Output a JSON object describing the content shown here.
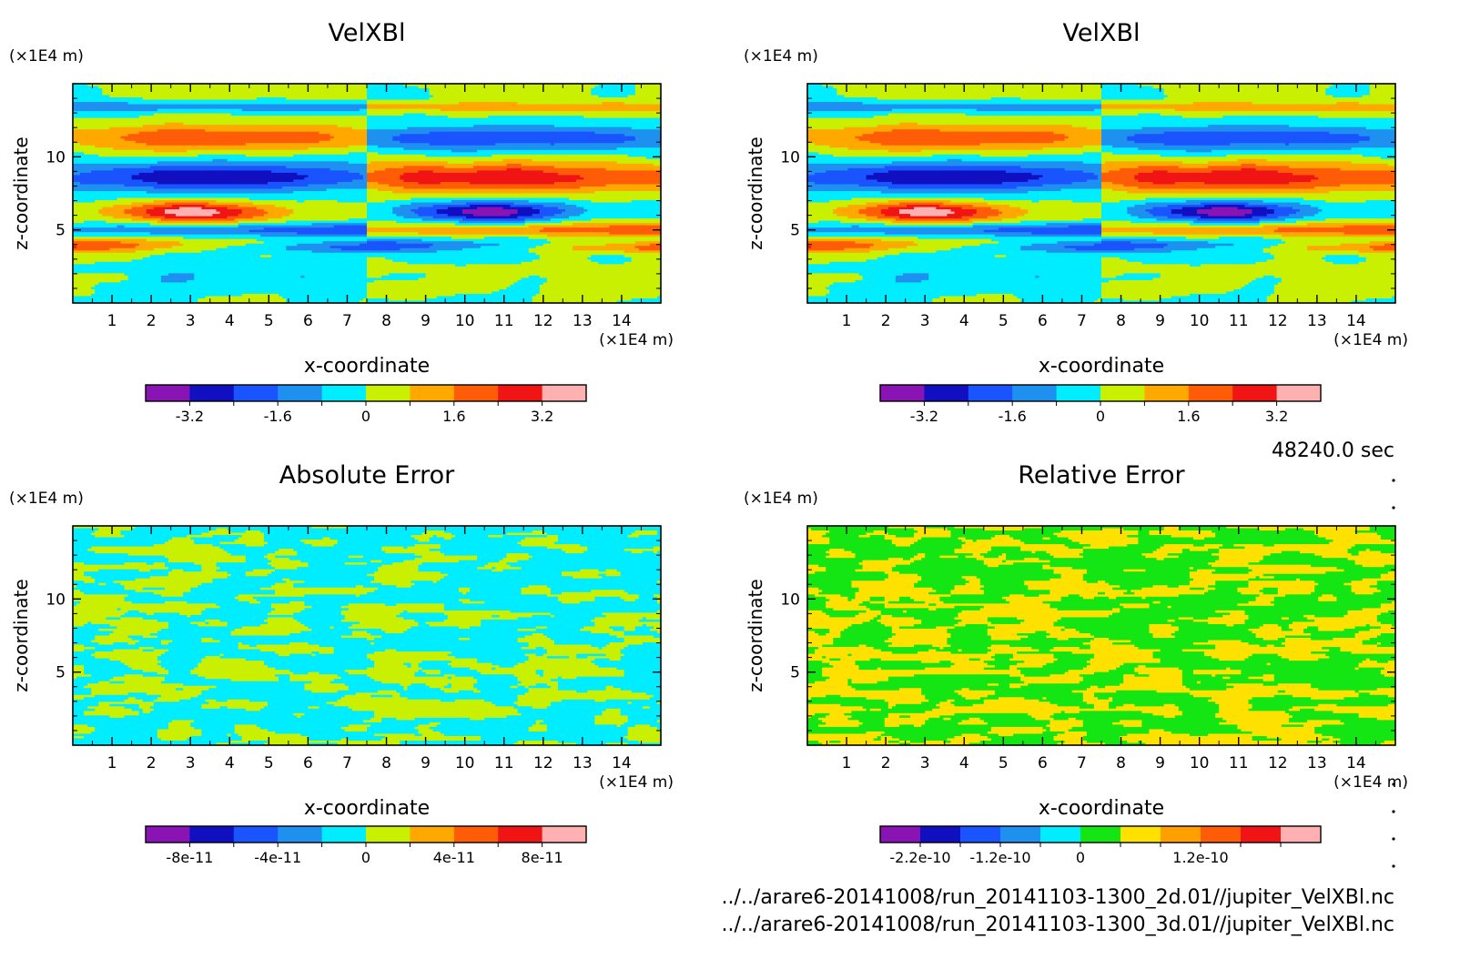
{
  "colors": {
    "velocity_palette": [
      "#8a13b4",
      "#1010c0",
      "#1a54ff",
      "#1e90f0",
      "#00ecff",
      "#c8f000",
      "#ffa800",
      "#ff5c08",
      "#f01414",
      "#ffb0b0"
    ],
    "abs_error_palette": [
      "#8a13b4",
      "#1010c0",
      "#1a54ff",
      "#1e90f0",
      "#00ecff",
      "#c8f000",
      "#ffa800",
      "#ff5c08",
      "#f01414",
      "#ffb0b0"
    ],
    "rel_error_palette": [
      "#8a13b4",
      "#1010c0",
      "#1a54ff",
      "#1e90f0",
      "#00ecff",
      "#14e614",
      "#ffe100",
      "#ffa000",
      "#ff5c08",
      "#f01414",
      "#ffb0b0"
    ]
  },
  "time_label": "48240.0 sec",
  "file_paths": [
    "../../arare6-20141008/run_20141103-1300_2d.01//jupiter_VelXBl.nc",
    "../../arare6-20141008/run_20141103-1300_3d.01//jupiter_VelXBl.nc"
  ],
  "chart_data": [
    {
      "type": "heatmap",
      "title": "VelXBl",
      "xlabel": "x-coordinate",
      "ylabel": "z-coordinate",
      "x_unit": "(×1E4 m)",
      "y_unit": "(×1E4 m)",
      "xlim": [
        0,
        15
      ],
      "ylim": [
        0,
        15
      ],
      "x_ticks": [
        1,
        2,
        3,
        4,
        5,
        6,
        7,
        8,
        9,
        10,
        11,
        12,
        13,
        14
      ],
      "y_ticks": [
        5,
        10
      ],
      "colorbar": {
        "tick_labels": [
          "-3.2",
          "-1.6",
          "0",
          "1.6",
          "3.2"
        ]
      }
    },
    {
      "type": "heatmap",
      "title": "VelXBl",
      "xlabel": "x-coordinate",
      "ylabel": "z-coordinate",
      "x_unit": "(×1E4 m)",
      "y_unit": "(×1E4 m)",
      "xlim": [
        0,
        15
      ],
      "ylim": [
        0,
        15
      ],
      "x_ticks": [
        1,
        2,
        3,
        4,
        5,
        6,
        7,
        8,
        9,
        10,
        11,
        12,
        13,
        14
      ],
      "y_ticks": [
        5,
        10
      ],
      "colorbar": {
        "tick_labels": [
          "-3.2",
          "-1.6",
          "0",
          "1.6",
          "3.2"
        ]
      }
    },
    {
      "type": "heatmap",
      "title": "Absolute Error",
      "xlabel": "x-coordinate",
      "ylabel": "z-coordinate",
      "x_unit": "(×1E4 m)",
      "y_unit": "(×1E4 m)",
      "xlim": [
        0,
        15
      ],
      "ylim": [
        0,
        15
      ],
      "x_ticks": [
        1,
        2,
        3,
        4,
        5,
        6,
        7,
        8,
        9,
        10,
        11,
        12,
        13,
        14
      ],
      "y_ticks": [
        5,
        10
      ],
      "colorbar": {
        "tick_labels": [
          "-8e-11",
          "-4e-11",
          "0",
          "4e-11",
          "8e-11"
        ]
      }
    },
    {
      "type": "heatmap",
      "title": "Relative Error",
      "xlabel": "x-coordinate",
      "ylabel": "z-coordinate",
      "x_unit": "(×1E4 m)",
      "y_unit": "(×1E4 m)",
      "xlim": [
        0,
        15
      ],
      "ylim": [
        0,
        15
      ],
      "x_ticks": [
        1,
        2,
        3,
        4,
        5,
        6,
        7,
        8,
        9,
        10,
        11,
        12,
        13,
        14
      ],
      "y_ticks": [
        5,
        10
      ],
      "colorbar": {
        "tick_labels": [
          "-2.2e-10",
          "-1.2e-10",
          "0",
          "1.2e-10"
        ]
      }
    }
  ]
}
